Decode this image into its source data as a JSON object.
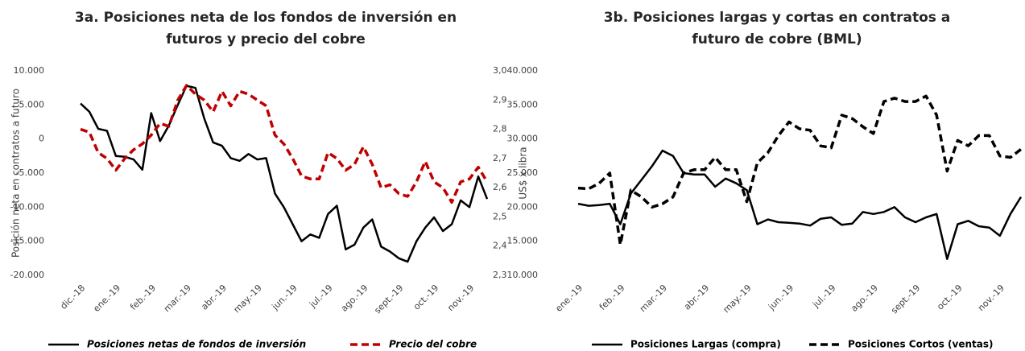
{
  "chart_data": [
    {
      "type": "line",
      "title": [
        "3a. Posiciones neta de los fondos de inversión en",
        "futuros y precio del cobre"
      ],
      "ylabel": "Posición neta en contratos a futuro",
      "y2label": "US$ x libra",
      "categories": [
        "dic.-18",
        null,
        null,
        null,
        "ene.-19",
        null,
        null,
        null,
        "feb.-19",
        null,
        null,
        null,
        "mar.-19",
        null,
        null,
        null,
        "abr.-19",
        null,
        null,
        null,
        "may.-19",
        null,
        null,
        null,
        "jun.-19",
        null,
        null,
        null,
        "jul.-19",
        null,
        null,
        null,
        "ago.-19",
        null,
        null,
        null,
        "sept.-19",
        null,
        null,
        null,
        "oct.-19",
        null,
        null,
        null,
        "nov.-19",
        null,
        null
      ],
      "ylim": [
        -20000,
        10000
      ],
      "yticks": [
        {
          "value": -20000,
          "label": "-20.000"
        },
        {
          "value": -15000,
          "label": "-15.000"
        },
        {
          "value": -10000,
          "label": "-10.000"
        },
        {
          "value": -5000,
          "label": "-5.000"
        },
        0,
        {
          "value": 5000,
          "label": "5.000"
        },
        {
          "value": 10000,
          "label": "10.000"
        }
      ],
      "y2lim": [
        2.3,
        3.0
      ],
      "y2ticks": [
        {
          "value": 2.3,
          "label": "2,3"
        },
        {
          "value": 2.4,
          "label": "2,4"
        },
        {
          "value": 2.5,
          "label": "2,5"
        },
        {
          "value": 2.6,
          "label": "2,6"
        },
        {
          "value": 2.7,
          "label": "2,7"
        },
        {
          "value": 2.8,
          "label": "2,8"
        },
        {
          "value": 2.9,
          "label": "2,9"
        },
        {
          "value": 3.0,
          "label": "3,0"
        }
      ],
      "series": [
        {
          "name": "Posiciones netas de fondos de inversión",
          "color": "#000000",
          "dash": "solid",
          "values": [
            5200,
            4000,
            1500,
            1200,
            -2500,
            -2600,
            -3000,
            -4500,
            3800,
            -300,
            2000,
            5000,
            7800,
            7500,
            3000,
            -500,
            -1000,
            -2800,
            -3200,
            -2200,
            -3000,
            -2800,
            -8000,
            -10000,
            -12500,
            -15000,
            -14000,
            -14500,
            -11000,
            -9800,
            -16200,
            -15500,
            -13000,
            -11800,
            -15800,
            -16500,
            -17500,
            -18000,
            -15000,
            -13000,
            -11500,
            -13500,
            -12500,
            -9000,
            -10000,
            -5500,
            -8800
          ]
        },
        {
          "name": "Precio del cobre",
          "color": "#c00000",
          "dash": "dashed",
          "axis": "y2",
          "values": [
            2.8,
            2.79,
            2.72,
            2.7,
            2.66,
            2.7,
            2.73,
            2.75,
            2.78,
            2.82,
            2.81,
            2.9,
            2.95,
            2.92,
            2.9,
            2.86,
            2.93,
            2.88,
            2.93,
            2.92,
            2.9,
            2.88,
            2.78,
            2.75,
            2.7,
            2.64,
            2.63,
            2.63,
            2.72,
            2.7,
            2.66,
            2.68,
            2.74,
            2.68,
            2.6,
            2.61,
            2.58,
            2.57,
            2.62,
            2.69,
            2.62,
            2.6,
            2.55,
            2.62,
            2.63,
            2.67,
            2.62
          ]
        }
      ]
    },
    {
      "type": "line",
      "title": [
        "3b. Posiciones largas y cortas en contratos a",
        "futuro de cobre (BML)"
      ],
      "categories": [
        "ene.-19",
        null,
        null,
        null,
        "feb.-19",
        null,
        null,
        null,
        "mar.-19",
        null,
        null,
        null,
        "abr.-19",
        null,
        null,
        null,
        "may.-19",
        null,
        null,
        null,
        "jun.-19",
        null,
        null,
        null,
        "jul.-19",
        null,
        null,
        null,
        "ago.-19",
        null,
        null,
        null,
        "sept.-19",
        null,
        null,
        null,
        "oct.-19",
        null,
        null,
        null,
        "nov.-19",
        null,
        null
      ],
      "ylim": [
        10000,
        40000
      ],
      "yticks": [
        {
          "value": 10000,
          "label": "10.000"
        },
        {
          "value": 15000,
          "label": "15.000"
        },
        {
          "value": 20000,
          "label": "20.000"
        },
        {
          "value": 25000,
          "label": "25.000"
        },
        {
          "value": 30000,
          "label": "30.000"
        },
        {
          "value": 35000,
          "label": "35.000"
        },
        {
          "value": 40000,
          "label": "40.000"
        }
      ],
      "series": [
        {
          "name": "Posiciones Largas (compra)",
          "color": "#000000",
          "dash": "solid",
          "values": [
            20500,
            20200,
            20300,
            20500,
            17500,
            22000,
            24000,
            26000,
            28300,
            27500,
            25000,
            24800,
            24800,
            23000,
            24200,
            23500,
            22500,
            17500,
            18200,
            17800,
            17700,
            17600,
            17300,
            18300,
            18500,
            17400,
            17600,
            19300,
            19000,
            19300,
            20000,
            18500,
            17800,
            18500,
            19000,
            12400,
            17500,
            18000,
            17200,
            17000,
            15800,
            19000,
            21500
          ]
        },
        {
          "name": "Posiciones Cortos (ventas)",
          "color": "#000000",
          "dash": "dashed",
          "values": [
            22800,
            22700,
            23500,
            25000,
            14500,
            22500,
            21500,
            20000,
            20500,
            21500,
            25000,
            25500,
            25500,
            27300,
            25500,
            25500,
            20800,
            26500,
            28000,
            30500,
            32500,
            31500,
            31300,
            29000,
            28700,
            33500,
            33000,
            31800,
            30800,
            35500,
            36000,
            35500,
            35500,
            36300,
            33500,
            25300,
            29800,
            29000,
            30500,
            30500,
            27500,
            27300,
            28500
          ]
        }
      ]
    }
  ]
}
